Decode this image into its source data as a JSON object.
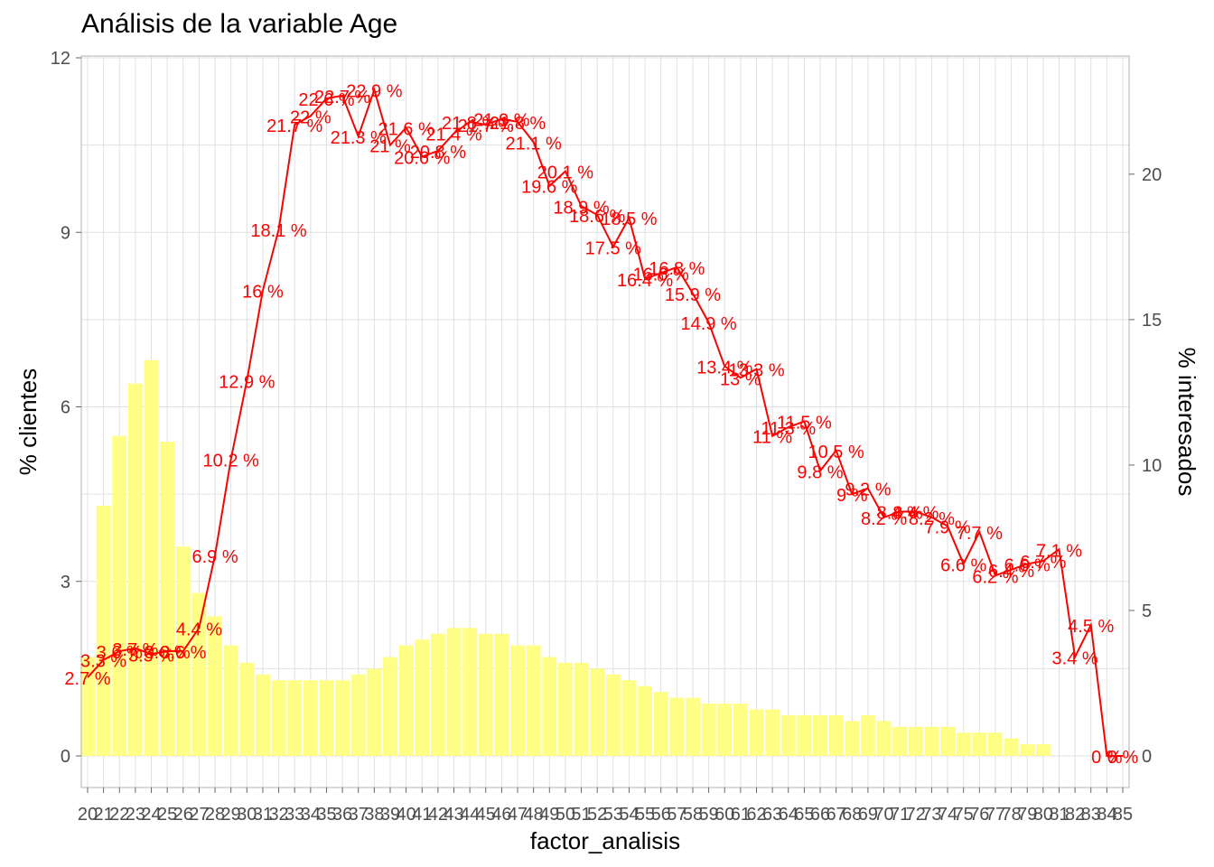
{
  "chart_data": {
    "type": "bar",
    "title": "Análisis de la variable Age",
    "xlabel": "factor_analisis",
    "ylabel": "% clientes",
    "y2label": "% interesados",
    "ylim": [
      0,
      12
    ],
    "y2lim": [
      0,
      24
    ],
    "yticks": [
      "0",
      "3",
      "6",
      "9",
      "12"
    ],
    "y2ticks": [
      "0",
      "5",
      "10",
      "15",
      "20"
    ],
    "grid": true,
    "colors": {
      "bars": "#ffff80",
      "line": "#ff0000",
      "labels": "#ff0000",
      "grid": "#e0e0e0"
    },
    "categories": [
      "20",
      "21",
      "22",
      "23",
      "24",
      "25",
      "26",
      "27",
      "28",
      "29",
      "30",
      "31",
      "32",
      "33",
      "34",
      "35",
      "36",
      "37",
      "38",
      "39",
      "40",
      "41",
      "42",
      "43",
      "44",
      "45",
      "46",
      "47",
      "48",
      "49",
      "50",
      "51",
      "52",
      "53",
      "54",
      "55",
      "56",
      "57",
      "58",
      "59",
      "60",
      "61",
      "62",
      "63",
      "64",
      "65",
      "66",
      "67",
      "68",
      "69",
      "70",
      "71",
      "72",
      "73",
      "74",
      "75",
      "76",
      "77",
      "78",
      "79",
      "80",
      "81",
      "82",
      "83",
      "84",
      "85"
    ],
    "series": [
      {
        "values": [
          1.7,
          4.3,
          5.5,
          6.4,
          6.8,
          5.4,
          3.6,
          2.8,
          2.4,
          1.9,
          1.6,
          1.4,
          1.3,
          1.3,
          1.3,
          1.3,
          1.3,
          1.4,
          1.5,
          1.7,
          1.9,
          2.0,
          2.1,
          2.2,
          2.2,
          2.1,
          2.1,
          1.9,
          1.9,
          1.7,
          1.6,
          1.6,
          1.5,
          1.4,
          1.3,
          1.2,
          1.1,
          1.0,
          1.0,
          0.9,
          0.9,
          0.9,
          0.8,
          0.8,
          0.7,
          0.7,
          0.7,
          0.7,
          0.6,
          0.7,
          0.6,
          0.5,
          0.5,
          0.5,
          0.5,
          0.4,
          0.4,
          0.4,
          0.3,
          0.2,
          0.2,
          0,
          0,
          0,
          0,
          0
        ]
      },
      {
        "values": [
          2.7,
          3.3,
          3.6,
          3.7,
          3.5,
          3.6,
          3.6,
          4.4,
          6.9,
          10.2,
          12.9,
          16,
          18.1,
          21.7,
          22,
          22.6,
          22.7,
          21.3,
          22.9,
          21,
          21.6,
          20.6,
          20.8,
          21.4,
          21.8,
          21.7,
          21.9,
          21.8,
          21.1,
          19.6,
          20.1,
          18.9,
          18.6,
          17.5,
          18.5,
          16.4,
          16.6,
          16.8,
          15.9,
          14.9,
          13.4,
          13,
          13.3,
          11,
          11.3,
          11.5,
          9.8,
          10.5,
          9,
          9.2,
          8.2,
          8.4,
          8.4,
          8.2,
          7.9,
          6.6,
          7.7,
          6.2,
          6.4,
          6.6,
          6.7,
          7.1,
          3.4,
          4.5,
          0,
          0
        ],
        "labels": [
          "2.7 %",
          "3.3 %",
          "3.6 %",
          "3.7 %",
          "3.5 %",
          "3.6 %",
          "3.6 %",
          "4.4 %",
          "6.9 %",
          "10.2 %",
          "12.9 %",
          "16 %",
          "18.1 %",
          "21.7 %",
          "22 %",
          "22.6 %",
          "22.7 %",
          "21.3 %",
          "22.9 %",
          "21 %",
          "21.6 %",
          "20.6 %",
          "20.8 %",
          "21.4 %",
          "21.8 %",
          "21.7 %",
          "21.9 %",
          "21.8 %",
          "21.1 %",
          "19.6 %",
          "20.1 %",
          "18.9 %",
          "18.6 %",
          "17.5 %",
          "18.5 %",
          "16.4 %",
          "16.6 %",
          "16.8 %",
          "15.9 %",
          "14.9 %",
          "13.4 %",
          "13 %",
          "13.3 %",
          "11 %",
          "11.3 %",
          "11.5 %",
          "9.8 %",
          "10.5 %",
          "9 %",
          "9.2 %",
          "8.2 %",
          "8.4 %",
          "8.4 %",
          "8.2 %",
          "7.9 %",
          "6.6 %",
          "7.7 %",
          "6.2 %",
          "6.4 %",
          "6.6 %",
          "6.7 %",
          "7.1 %",
          "3.4 %",
          "4.5 %",
          "0 %",
          "0 %"
        ]
      }
    ]
  }
}
